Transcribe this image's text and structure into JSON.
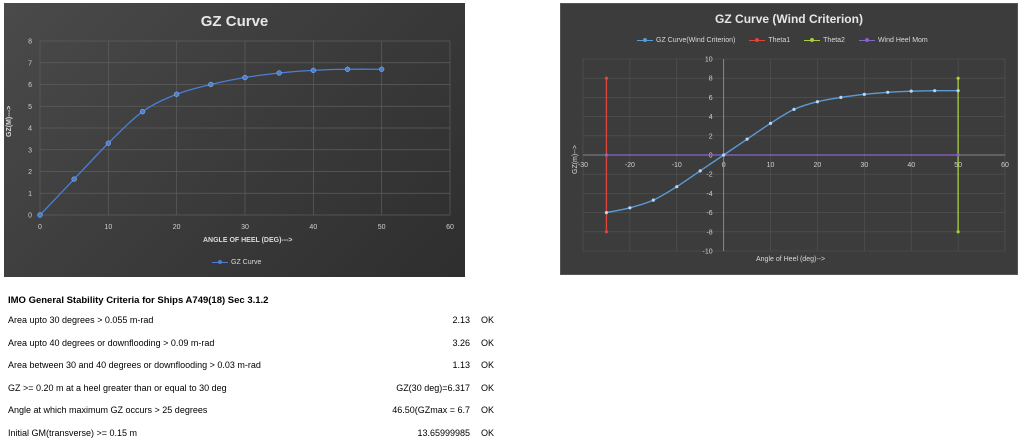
{
  "chart_data": [
    {
      "type": "line",
      "title": "GZ Curve",
      "xlabel": "ANGLE OF HEEL (DEG)--->",
      "ylabel": "GZ(M)--->",
      "xlim": [
        0,
        60
      ],
      "ylim": [
        0,
        8
      ],
      "xticks": [
        0,
        10,
        20,
        30,
        40,
        50,
        60
      ],
      "yticks": [
        0,
        1,
        2,
        3,
        4,
        5,
        6,
        7,
        8
      ],
      "grid": true,
      "legend_position": "bottom",
      "series": [
        {
          "name": "GZ Curve",
          "color": "#4a7fd4",
          "x": [
            0,
            5,
            10,
            15,
            20,
            25,
            30,
            35,
            40,
            45,
            50
          ],
          "y": [
            0,
            1.65,
            3.3,
            4.75,
            5.55,
            6.0,
            6.32,
            6.53,
            6.65,
            6.7,
            6.7
          ]
        }
      ]
    },
    {
      "type": "line",
      "title": "GZ Curve (Wind Criterion)",
      "xlabel": "Angle of Heel (deg)-->",
      "ylabel": "GZ(m)-->",
      "xlim": [
        -30,
        60
      ],
      "ylim": [
        -10,
        10
      ],
      "xticks": [
        -30,
        -20,
        -10,
        0,
        10,
        20,
        30,
        40,
        50,
        60
      ],
      "yticks": [
        -10,
        -8,
        -6,
        -4,
        -2,
        0,
        2,
        4,
        6,
        8,
        10
      ],
      "grid": true,
      "legend_position": "top",
      "series": [
        {
          "name": "GZ Curve(Wind Criterion)",
          "color": "#5b9bd5",
          "x": [
            -25,
            -20,
            -15,
            -10,
            -5,
            0,
            5,
            10,
            15,
            20,
            25,
            30,
            35,
            40,
            45,
            50
          ],
          "y": [
            -6.0,
            -5.5,
            -4.7,
            -3.3,
            -1.65,
            0,
            1.65,
            3.3,
            4.75,
            5.55,
            6.0,
            6.32,
            6.53,
            6.65,
            6.7,
            6.7
          ]
        },
        {
          "name": "Theta1",
          "color": "#e0443b",
          "x": [
            -25,
            -25
          ],
          "y": [
            -8,
            8
          ]
        },
        {
          "name": "Theta2",
          "color": "#a8d03a",
          "x": [
            50,
            50
          ],
          "y": [
            -8,
            8
          ]
        },
        {
          "name": "Wind Heel Mom",
          "color": "#8a63c9",
          "x": [
            -25,
            50
          ],
          "y": [
            0,
            0
          ]
        }
      ]
    }
  ],
  "criteria": {
    "heading": "IMO General Stability Criteria for Ships A749(18) Sec 3.1.2",
    "rows": [
      {
        "label": "Area upto 30 degrees > 0.055 m-rad",
        "value": "2.13",
        "status": "OK"
      },
      {
        "label": "Area upto 40 degrees or downflooding > 0.09 m-rad",
        "value": "3.26",
        "status": "OK"
      },
      {
        "label": "Area between 30 and 40 degrees or downflooding > 0.03 m-rad",
        "value": "1.13",
        "status": "OK"
      },
      {
        "label": "GZ >= 0.20 m at a heel greater than or equal to 30 deg",
        "value": "GZ(30 deg)=6.317",
        "status": "OK"
      },
      {
        "label": "Angle at which maximum GZ occurs > 25 degrees",
        "value": "46.50(GZmax = 6.7",
        "status": "OK"
      },
      {
        "label": "Initial GM(transverse) >= 0.15 m",
        "value": "13.65999985",
        "status": "OK"
      }
    ]
  }
}
